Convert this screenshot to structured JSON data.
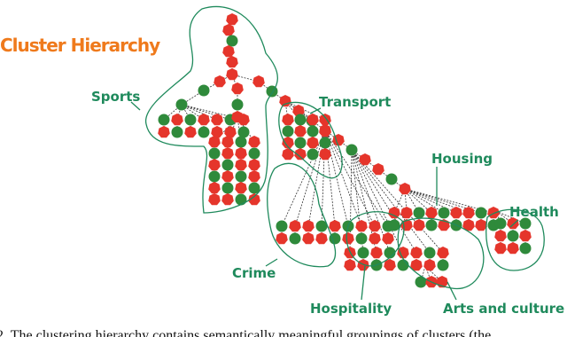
{
  "title": "Cluster Hierarchy",
  "clusters": [
    "Sports",
    "Transport",
    "Housing",
    "Health",
    "Crime",
    "Hospitality",
    "Arts and culture"
  ],
  "caption": "2. The clustering hierarchy contains semantically meaningful groupings of clusters (the"
}
